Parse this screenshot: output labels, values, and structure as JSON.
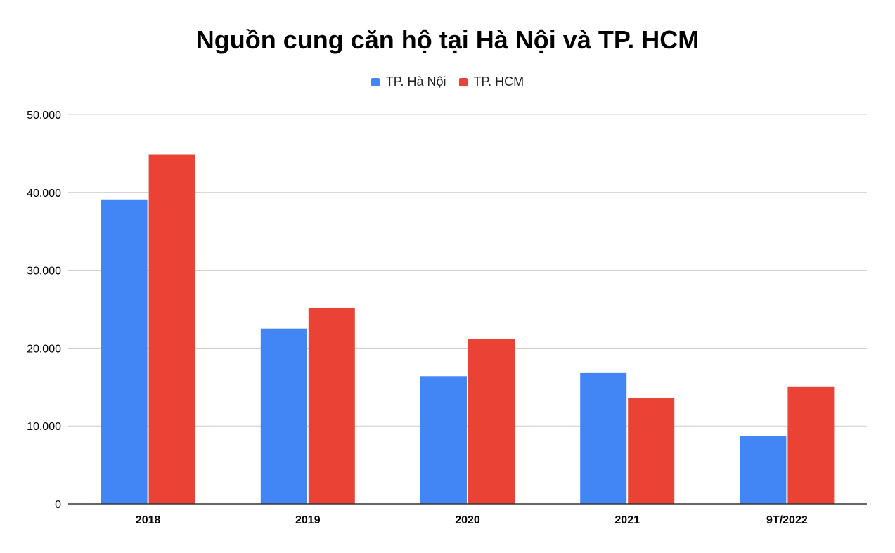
{
  "chart_data": {
    "type": "bar",
    "title": "Nguồn cung căn hộ tại Hà Nội và TP. HCM",
    "categories": [
      "2018",
      "2019",
      "2020",
      "2021",
      "9T/2022"
    ],
    "series": [
      {
        "name": "TP. Hà Nội",
        "color": "#4285F4",
        "values": [
          39100,
          22500,
          16400,
          16800,
          8700
        ]
      },
      {
        "name": "TP. HCM",
        "color": "#EA4335",
        "values": [
          44900,
          25100,
          21200,
          13600,
          15000
        ]
      }
    ],
    "ylim": [
      0,
      50000
    ],
    "yticks": [
      0,
      10000,
      20000,
      30000,
      40000,
      50000
    ],
    "ytick_labels": [
      "0",
      "10.000",
      "20.000",
      "30.000",
      "40.000",
      "50.000"
    ],
    "grid": true,
    "legend_position": "top-center"
  }
}
